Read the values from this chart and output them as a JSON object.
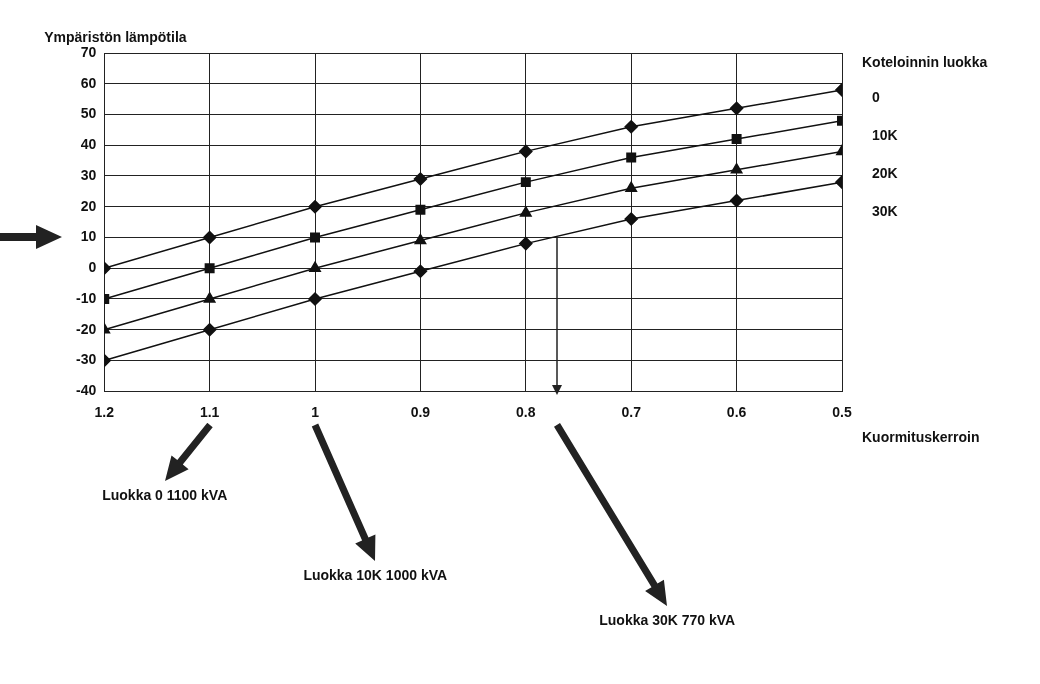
{
  "chart_data": {
    "type": "line",
    "ylabel": "Ympäristön lämpötila",
    "xlabel": "Kuormituskerroin",
    "legend_title": "Koteloinnin luokka",
    "x": [
      1.2,
      1.1,
      1.0,
      0.9,
      0.8,
      0.7,
      0.6,
      0.5
    ],
    "series": [
      {
        "name": "0",
        "color": "#111111",
        "marker": "diamond",
        "values": [
          0,
          10,
          20,
          29,
          38,
          46,
          52,
          58
        ]
      },
      {
        "name": "10K",
        "color": "#111111",
        "marker": "square",
        "values": [
          -10,
          0,
          10,
          19,
          28,
          36,
          42,
          48
        ]
      },
      {
        "name": "20K",
        "color": "#111111",
        "marker": "triangle",
        "values": [
          -20,
          -10,
          0,
          9,
          18,
          26,
          32,
          38
        ]
      },
      {
        "name": "30K",
        "color": "#111111",
        "marker": "diamond",
        "values": [
          -30,
          -20,
          -10,
          -1,
          8,
          16,
          22,
          28
        ]
      }
    ],
    "xlim": [
      1.2,
      0.5
    ],
    "xticks": [
      1.2,
      1.1,
      1,
      0.9,
      0.8,
      0.7,
      0.6,
      0.5
    ],
    "ylim": [
      -40,
      70
    ],
    "yticks": [
      -40,
      -30,
      -20,
      -10,
      0,
      10,
      20,
      30,
      40,
      50,
      60,
      70
    ],
    "grid": true,
    "legend": "right",
    "annotations": [
      "Luokka 0 1100 kVA",
      "Luokka 10K 1000 kVA",
      "Luokka 30K 770 kVA"
    ]
  }
}
